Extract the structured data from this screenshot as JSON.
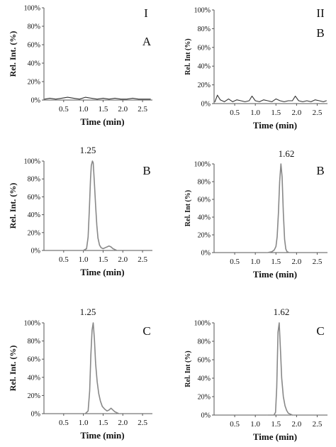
{
  "column_headers": [
    "I",
    "II"
  ],
  "chart_data": [
    {
      "type": "line",
      "column": "I",
      "panel_label": "A",
      "xlabel": "Time (min)",
      "ylabel": "Rel. Int. (%)",
      "xlim": [
        0,
        2.75
      ],
      "ylim": [
        0,
        100
      ],
      "x_ticks": [
        0.5,
        1.0,
        1.5,
        2.0,
        2.5
      ],
      "x_tick_labels": [
        "0.5",
        "1.0",
        "1.5",
        "2.0",
        "2.5"
      ],
      "y_ticks": [
        0,
        20,
        40,
        60,
        80,
        100
      ],
      "y_tick_labels": [
        "0%",
        "20%",
        "40%",
        "60%",
        "80%",
        "100%"
      ],
      "peak_label": "",
      "color": "#333333",
      "series": [
        {
          "x": [
            0.02,
            0.15,
            0.3,
            0.45,
            0.6,
            0.75,
            0.9,
            1.05,
            1.2,
            1.35,
            1.5,
            1.65,
            1.8,
            1.95,
            2.1,
            2.25,
            2.4,
            2.55,
            2.7
          ],
          "y": [
            1,
            2,
            1,
            2,
            3,
            2,
            1,
            3,
            2,
            1,
            2,
            1,
            2,
            1,
            1,
            2,
            1,
            1,
            1
          ]
        }
      ]
    },
    {
      "type": "line",
      "column": "II",
      "panel_label": "B",
      "xlabel": "Time (min)",
      "ylabel": "Rel. Int (%)",
      "xlim": [
        0,
        2.75
      ],
      "ylim": [
        0,
        100
      ],
      "x_ticks": [
        0.5,
        1.0,
        1.5,
        2.0,
        2.5
      ],
      "x_tick_labels": [
        "0.5",
        "1.0",
        "1.5",
        "2.0",
        "2.5"
      ],
      "y_ticks": [
        0,
        20,
        40,
        60,
        80,
        100
      ],
      "y_tick_labels": [
        "0%",
        "20%",
        "40%",
        "60%",
        "80%",
        "100%"
      ],
      "peak_label": "",
      "color": "#333333",
      "series": [
        {
          "x": [
            0.02,
            0.08,
            0.15,
            0.25,
            0.35,
            0.45,
            0.55,
            0.65,
            0.75,
            0.85,
            0.92,
            1.0,
            1.1,
            1.2,
            1.3,
            1.4,
            1.5,
            1.6,
            1.7,
            1.8,
            1.9,
            1.97,
            2.05,
            2.15,
            2.25,
            2.35,
            2.45,
            2.55,
            2.65,
            2.72
          ],
          "y": [
            2,
            9,
            4,
            2,
            5,
            2,
            4,
            3,
            2,
            3,
            8,
            3,
            2,
            4,
            3,
            2,
            5,
            3,
            2,
            3,
            3,
            8,
            3,
            2,
            3,
            2,
            4,
            3,
            2,
            3
          ]
        }
      ]
    },
    {
      "type": "line",
      "column": "I",
      "panel_label": "B",
      "xlabel": "Time (min)",
      "ylabel": "Rel. Int. (%)",
      "xlim": [
        0,
        2.75
      ],
      "ylim": [
        0,
        100
      ],
      "x_ticks": [
        0.5,
        1.0,
        1.5,
        2.0,
        2.5
      ],
      "x_tick_labels": [
        "0.5",
        "1.0",
        "1.5",
        "2.0",
        "2.5"
      ],
      "y_ticks": [
        0,
        20,
        40,
        60,
        80,
        100
      ],
      "y_tick_labels": [
        "0%",
        "20%",
        "40%",
        "60%",
        "80%",
        "100%"
      ],
      "peak_label": "1.25",
      "color": "#888888",
      "series": [
        {
          "x": [
            1.0,
            1.08,
            1.12,
            1.15,
            1.18,
            1.2,
            1.23,
            1.25,
            1.28,
            1.31,
            1.34,
            1.37,
            1.41,
            1.45,
            1.5,
            1.55,
            1.6,
            1.65,
            1.7,
            1.75,
            1.8,
            1.85
          ],
          "y": [
            0,
            2,
            15,
            45,
            80,
            95,
            100,
            98,
            75,
            50,
            28,
            14,
            6,
            3,
            2,
            3,
            4,
            5,
            4,
            2,
            1,
            0
          ]
        }
      ]
    },
    {
      "type": "line",
      "column": "II",
      "panel_label": "B",
      "xlabel": "Time (min)",
      "ylabel": "Rel. Int (%)",
      "xlim": [
        0,
        2.75
      ],
      "ylim": [
        0,
        100
      ],
      "x_ticks": [
        0.5,
        1.0,
        1.5,
        2.0,
        2.5
      ],
      "x_tick_labels": [
        "0.5",
        "1.0",
        "1.5",
        "2.0",
        "2.5"
      ],
      "y_ticks": [
        0,
        20,
        40,
        60,
        80,
        100
      ],
      "y_tick_labels": [
        "0%",
        "20%",
        "40%",
        "60%",
        "80%",
        "100%"
      ],
      "peak_label": "1.62",
      "color": "#888888",
      "series": [
        {
          "x": [
            1.3,
            1.4,
            1.46,
            1.5,
            1.53,
            1.56,
            1.59,
            1.62,
            1.65,
            1.68,
            1.71,
            1.74,
            1.77,
            1.82
          ],
          "y": [
            0,
            1,
            3,
            7,
            18,
            45,
            80,
            100,
            85,
            45,
            15,
            4,
            1,
            0
          ]
        }
      ]
    },
    {
      "type": "line",
      "column": "I",
      "panel_label": "C",
      "xlabel": "Time (min)",
      "ylabel": "Rel. Int. (%)",
      "xlim": [
        0,
        2.75
      ],
      "ylim": [
        0,
        100
      ],
      "x_ticks": [
        0.5,
        1.0,
        1.5,
        2.0,
        2.5
      ],
      "x_tick_labels": [
        "0.5",
        "1.0",
        "1.5",
        "2.0",
        "2.5"
      ],
      "y_ticks": [
        0,
        20,
        40,
        60,
        80,
        100
      ],
      "y_tick_labels": [
        "0%",
        "20%",
        "40%",
        "60%",
        "80%",
        "100%"
      ],
      "peak_label": "1.25",
      "color": "#888888",
      "series": [
        {
          "x": [
            1.05,
            1.12,
            1.16,
            1.19,
            1.22,
            1.25,
            1.28,
            1.31,
            1.35,
            1.39,
            1.43,
            1.48,
            1.54,
            1.6,
            1.65,
            1.7,
            1.75,
            1.8,
            1.85,
            1.9
          ],
          "y": [
            0,
            3,
            25,
            65,
            92,
            100,
            82,
            55,
            35,
            22,
            14,
            8,
            5,
            3,
            4,
            6,
            4,
            2,
            1,
            0
          ]
        }
      ]
    },
    {
      "type": "line",
      "column": "II",
      "panel_label": "C",
      "xlabel": "Time (min)",
      "ylabel": "Rel. Int (%)",
      "xlim": [
        0,
        2.75
      ],
      "ylim": [
        0,
        100
      ],
      "x_ticks": [
        0.5,
        1.0,
        1.5,
        2.0,
        2.5
      ],
      "x_tick_labels": [
        "0.5",
        "1.0",
        "1.5",
        "2.0",
        "2.5"
      ],
      "y_ticks": [
        0,
        20,
        40,
        60,
        80,
        100
      ],
      "y_tick_labels": [
        "0%",
        "20%",
        "40%",
        "60%",
        "80%",
        "100%"
      ],
      "peak_label": "1.62",
      "color": "#888888",
      "series": [
        {
          "x": [
            1.3,
            1.45,
            1.49,
            1.52,
            1.55,
            1.58,
            1.61,
            1.64,
            1.68,
            1.72,
            1.76,
            1.8,
            1.85,
            1.9
          ],
          "y": [
            0,
            0,
            3,
            30,
            90,
            100,
            70,
            40,
            20,
            10,
            5,
            2,
            1,
            0
          ]
        }
      ]
    }
  ]
}
